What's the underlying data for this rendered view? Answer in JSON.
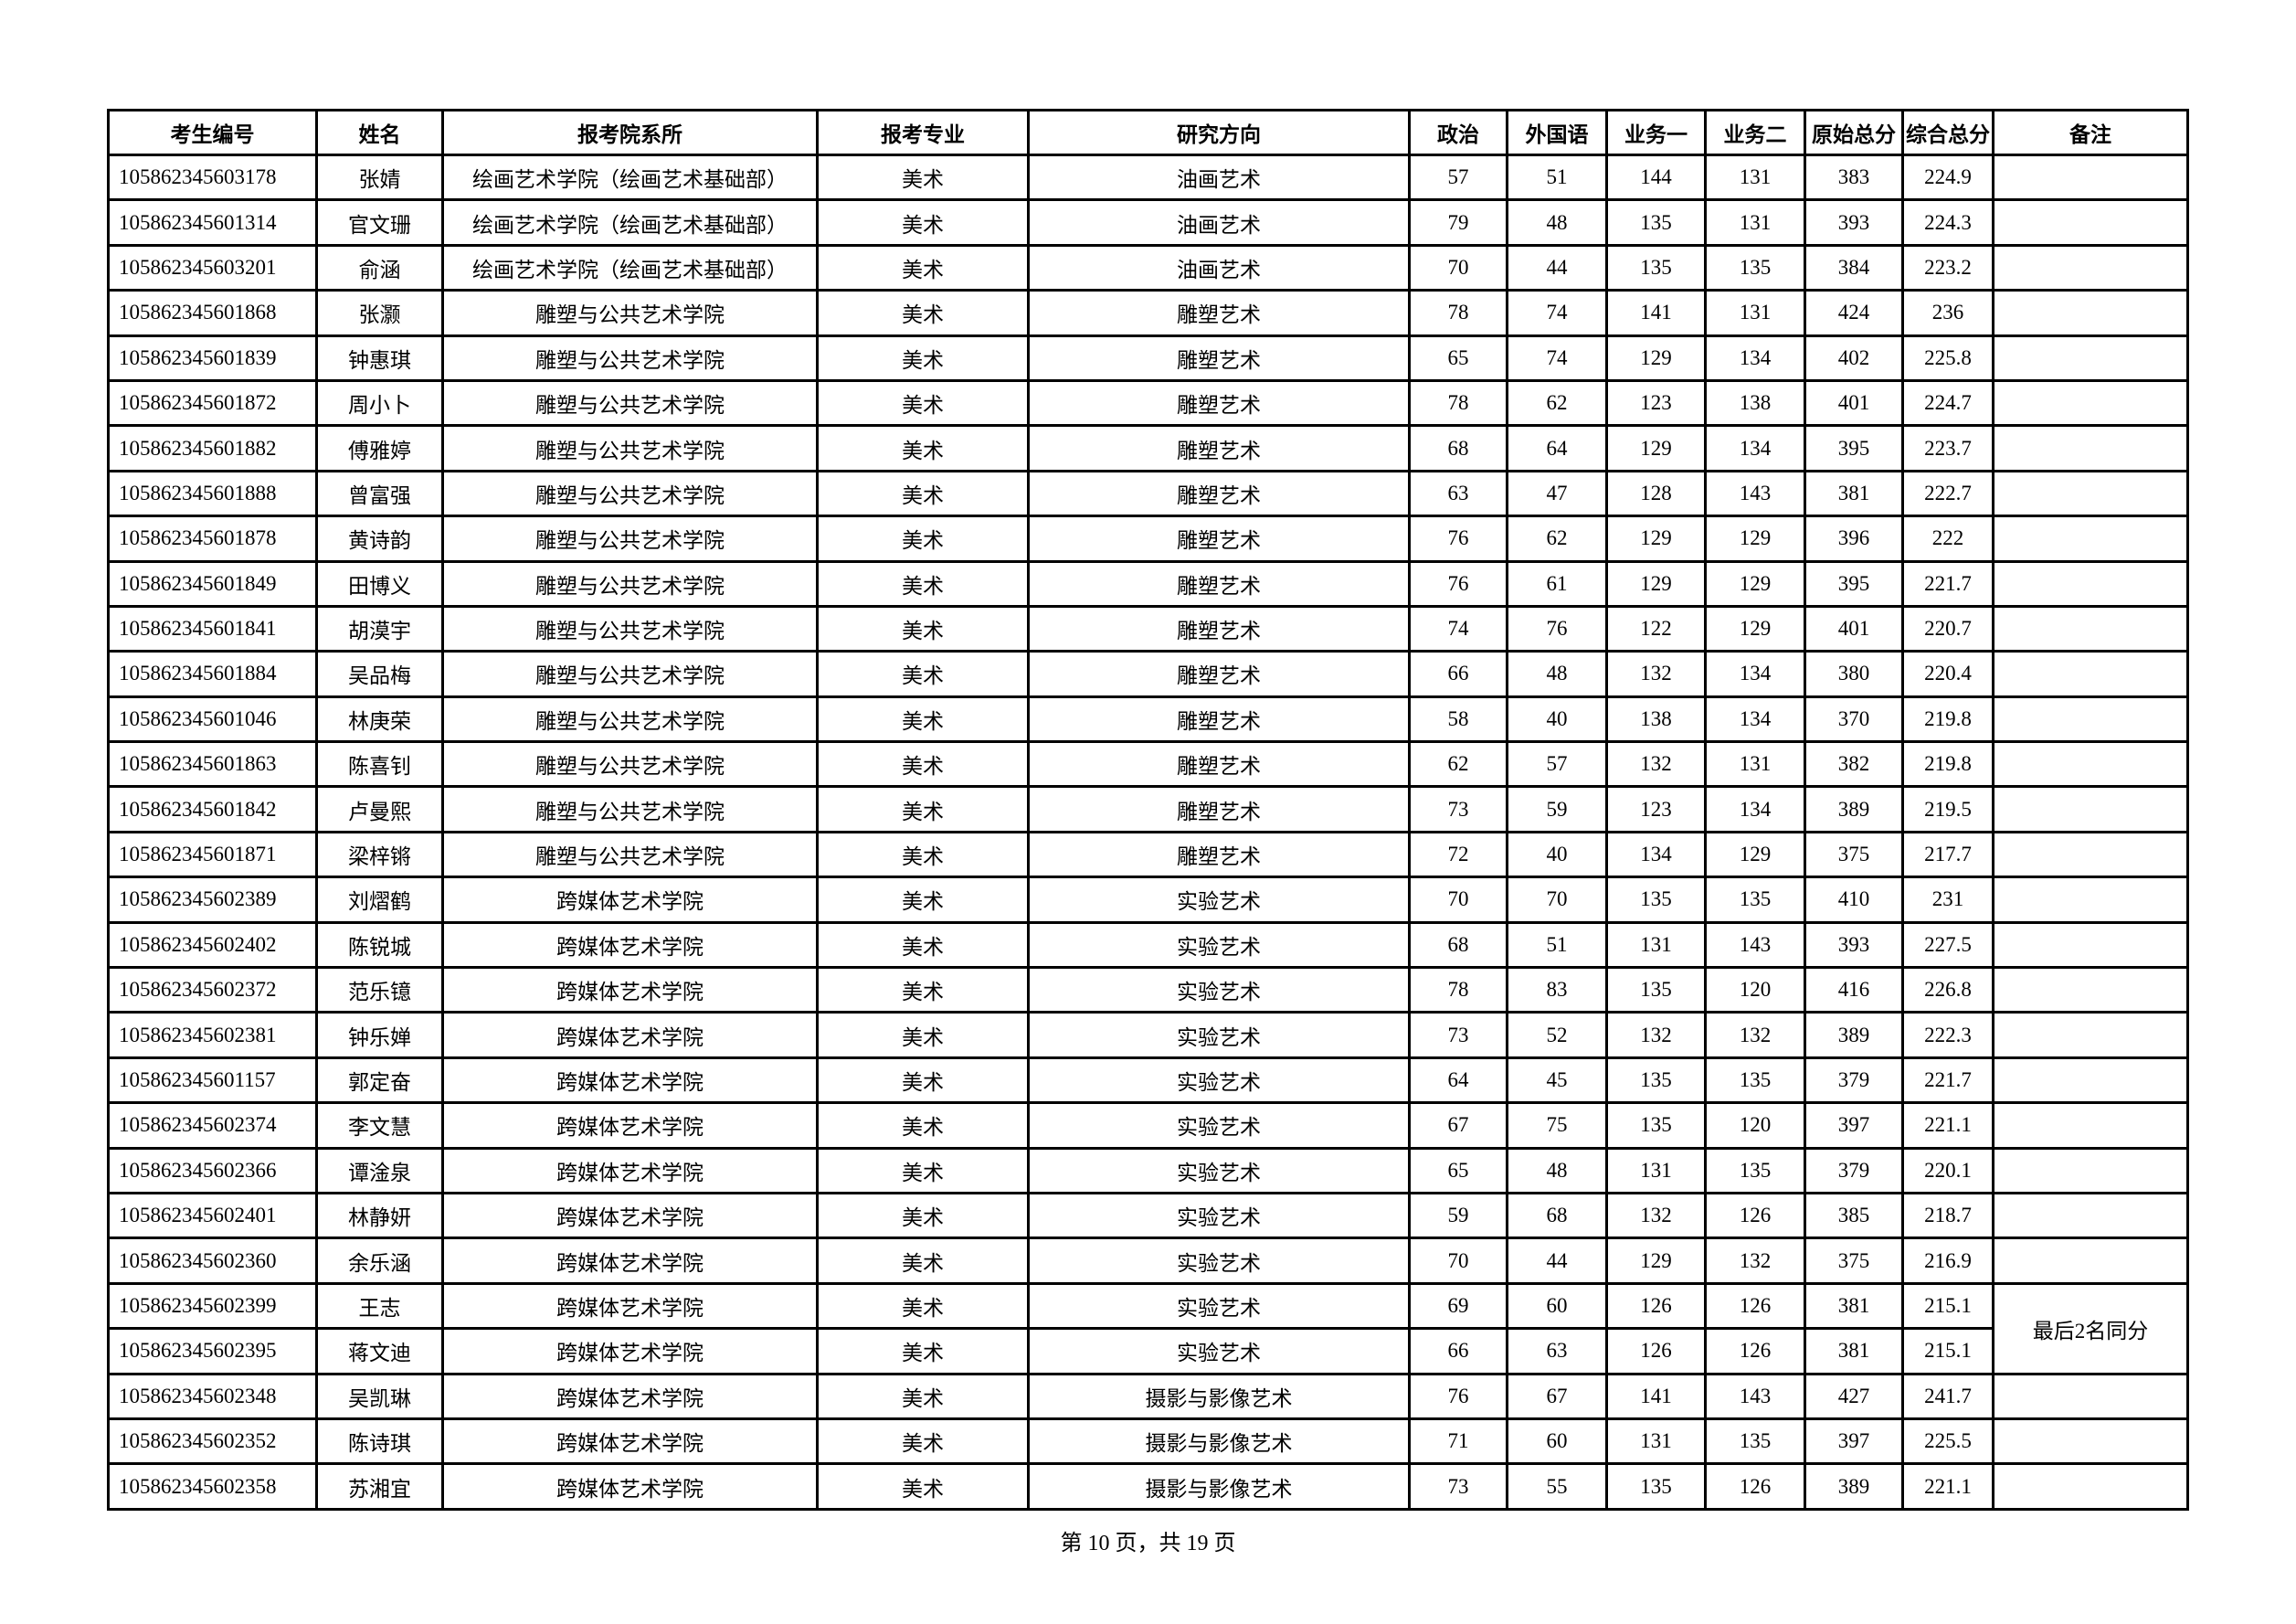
{
  "table": {
    "headers": [
      "考生编号",
      "姓名",
      "报考院系所",
      "报考专业",
      "研究方向",
      "政治",
      "外国语",
      "业务一",
      "业务二",
      "原始总分",
      "综合总分",
      "备注"
    ],
    "rows": [
      [
        "105862345603178",
        "张婧",
        "绘画艺术学院（绘画艺术基础部）",
        "美术",
        "油画艺术",
        "57",
        "51",
        "144",
        "131",
        "383",
        "224.9",
        ""
      ],
      [
        "105862345601314",
        "官文珊",
        "绘画艺术学院（绘画艺术基础部）",
        "美术",
        "油画艺术",
        "79",
        "48",
        "135",
        "131",
        "393",
        "224.3",
        ""
      ],
      [
        "105862345603201",
        "俞涵",
        "绘画艺术学院（绘画艺术基础部）",
        "美术",
        "油画艺术",
        "70",
        "44",
        "135",
        "135",
        "384",
        "223.2",
        ""
      ],
      [
        "105862345601868",
        "张灏",
        "雕塑与公共艺术学院",
        "美术",
        "雕塑艺术",
        "78",
        "74",
        "141",
        "131",
        "424",
        "236",
        ""
      ],
      [
        "105862345601839",
        "钟惠琪",
        "雕塑与公共艺术学院",
        "美术",
        "雕塑艺术",
        "65",
        "74",
        "129",
        "134",
        "402",
        "225.8",
        ""
      ],
      [
        "105862345601872",
        "周小卜",
        "雕塑与公共艺术学院",
        "美术",
        "雕塑艺术",
        "78",
        "62",
        "123",
        "138",
        "401",
        "224.7",
        ""
      ],
      [
        "105862345601882",
        "傅雅婷",
        "雕塑与公共艺术学院",
        "美术",
        "雕塑艺术",
        "68",
        "64",
        "129",
        "134",
        "395",
        "223.7",
        ""
      ],
      [
        "105862345601888",
        "曾富强",
        "雕塑与公共艺术学院",
        "美术",
        "雕塑艺术",
        "63",
        "47",
        "128",
        "143",
        "381",
        "222.7",
        ""
      ],
      [
        "105862345601878",
        "黄诗韵",
        "雕塑与公共艺术学院",
        "美术",
        "雕塑艺术",
        "76",
        "62",
        "129",
        "129",
        "396",
        "222",
        ""
      ],
      [
        "105862345601849",
        "田博义",
        "雕塑与公共艺术学院",
        "美术",
        "雕塑艺术",
        "76",
        "61",
        "129",
        "129",
        "395",
        "221.7",
        ""
      ],
      [
        "105862345601841",
        "胡漠宇",
        "雕塑与公共艺术学院",
        "美术",
        "雕塑艺术",
        "74",
        "76",
        "122",
        "129",
        "401",
        "220.7",
        ""
      ],
      [
        "105862345601884",
        "吴品梅",
        "雕塑与公共艺术学院",
        "美术",
        "雕塑艺术",
        "66",
        "48",
        "132",
        "134",
        "380",
        "220.4",
        ""
      ],
      [
        "105862345601046",
        "林庚荣",
        "雕塑与公共艺术学院",
        "美术",
        "雕塑艺术",
        "58",
        "40",
        "138",
        "134",
        "370",
        "219.8",
        ""
      ],
      [
        "105862345601863",
        "陈喜钊",
        "雕塑与公共艺术学院",
        "美术",
        "雕塑艺术",
        "62",
        "57",
        "132",
        "131",
        "382",
        "219.8",
        ""
      ],
      [
        "105862345601842",
        "卢曼熙",
        "雕塑与公共艺术学院",
        "美术",
        "雕塑艺术",
        "73",
        "59",
        "123",
        "134",
        "389",
        "219.5",
        ""
      ],
      [
        "105862345601871",
        "梁梓锵",
        "雕塑与公共艺术学院",
        "美术",
        "雕塑艺术",
        "72",
        "40",
        "134",
        "129",
        "375",
        "217.7",
        ""
      ],
      [
        "105862345602389",
        "刘熠鹤",
        "跨媒体艺术学院",
        "美术",
        "实验艺术",
        "70",
        "70",
        "135",
        "135",
        "410",
        "231",
        ""
      ],
      [
        "105862345602402",
        "陈锐城",
        "跨媒体艺术学院",
        "美术",
        "实验艺术",
        "68",
        "51",
        "131",
        "143",
        "393",
        "227.5",
        ""
      ],
      [
        "105862345602372",
        "范乐镱",
        "跨媒体艺术学院",
        "美术",
        "实验艺术",
        "78",
        "83",
        "135",
        "120",
        "416",
        "226.8",
        ""
      ],
      [
        "105862345602381",
        "钟乐婵",
        "跨媒体艺术学院",
        "美术",
        "实验艺术",
        "73",
        "52",
        "132",
        "132",
        "389",
        "222.3",
        ""
      ],
      [
        "105862345601157",
        "郭定奋",
        "跨媒体艺术学院",
        "美术",
        "实验艺术",
        "64",
        "45",
        "135",
        "135",
        "379",
        "221.7",
        ""
      ],
      [
        "105862345602374",
        "李文慧",
        "跨媒体艺术学院",
        "美术",
        "实验艺术",
        "67",
        "75",
        "135",
        "120",
        "397",
        "221.1",
        ""
      ],
      [
        "105862345602366",
        "谭淦泉",
        "跨媒体艺术学院",
        "美术",
        "实验艺术",
        "65",
        "48",
        "131",
        "135",
        "379",
        "220.1",
        ""
      ],
      [
        "105862345602401",
        "林静妍",
        "跨媒体艺术学院",
        "美术",
        "实验艺术",
        "59",
        "68",
        "132",
        "126",
        "385",
        "218.7",
        ""
      ],
      [
        "105862345602360",
        "余乐涵",
        "跨媒体艺术学院",
        "美术",
        "实验艺术",
        "70",
        "44",
        "129",
        "132",
        "375",
        "216.9",
        ""
      ],
      [
        "105862345602399",
        "王志",
        "跨媒体艺术学院",
        "美术",
        "实验艺术",
        "69",
        "60",
        "126",
        "126",
        "381",
        "215.1",
        "最后2名同分"
      ],
      [
        "105862345602395",
        "蒋文迪",
        "跨媒体艺术学院",
        "美术",
        "实验艺术",
        "66",
        "63",
        "126",
        "126",
        "381",
        "215.1",
        null
      ],
      [
        "105862345602348",
        "吴凯琳",
        "跨媒体艺术学院",
        "美术",
        "摄影与影像艺术",
        "76",
        "67",
        "141",
        "143",
        "427",
        "241.7",
        ""
      ],
      [
        "105862345602352",
        "陈诗琪",
        "跨媒体艺术学院",
        "美术",
        "摄影与影像艺术",
        "71",
        "60",
        "131",
        "135",
        "397",
        "225.5",
        ""
      ],
      [
        "105862345602358",
        "苏湘宜",
        "跨媒体艺术学院",
        "美术",
        "摄影与影像艺术",
        "73",
        "55",
        "135",
        "126",
        "389",
        "221.1",
        ""
      ]
    ]
  },
  "footer": {
    "page_info": "第 10 页，共 19 页"
  }
}
